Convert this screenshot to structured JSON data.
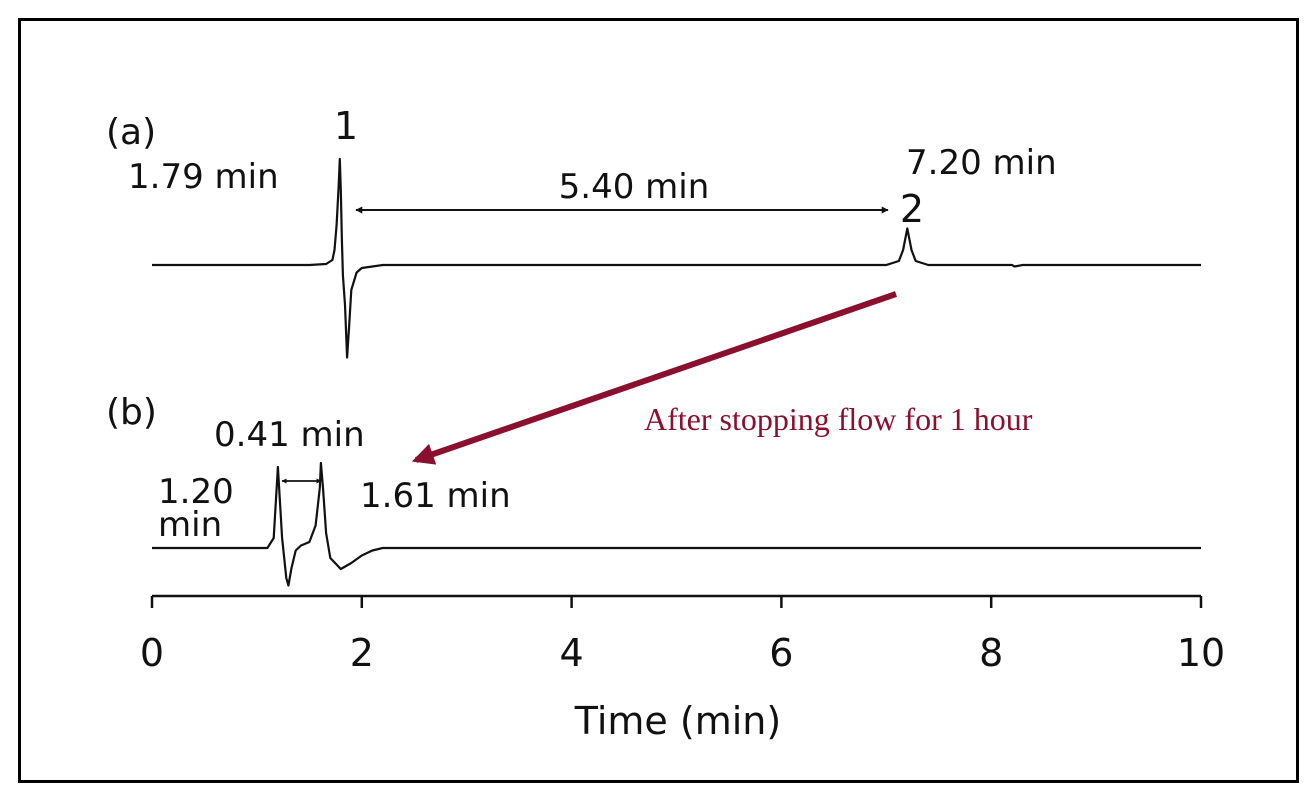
{
  "figure": {
    "panel_a_label": "(a)",
    "panel_b_label": "(b)",
    "peak1_number": "1",
    "peak2_number": "2",
    "peak1_time_label": "1.79 min",
    "peak2_time_label": "7.20 min",
    "spacing_a_label": "5.40 min",
    "b_peak1_time_label_line1": "1.20",
    "b_peak1_time_label_line2": "min",
    "b_spacing_label": "0.41 min",
    "b_peak2_time_label": "1.61 min",
    "annotation": "After stopping flow for 1 hour",
    "annotation_color": "#8b0f2e"
  },
  "chart_data": {
    "type": "line",
    "xlabel": "Time (min)",
    "ylabel": "",
    "xlim": [
      0,
      10
    ],
    "x_ticks": [
      0,
      2,
      4,
      6,
      8,
      10
    ],
    "x_tick_labels": [
      "0",
      "2",
      "4",
      "6",
      "8",
      "10"
    ],
    "grid": false,
    "series": [
      {
        "panel": "a",
        "x": [
          0,
          1.5,
          1.66,
          1.72,
          1.74,
          1.76,
          1.78,
          1.79,
          1.8,
          1.81,
          1.82,
          1.84,
          1.86,
          1.88,
          1.9,
          1.95,
          2.0,
          2.2,
          4.0,
          7.0,
          7.12,
          7.16,
          7.2,
          7.24,
          7.28,
          7.4,
          8.0,
          8.2,
          8.22,
          8.3,
          10.0
        ],
        "y": [
          0,
          0,
          0.02,
          0.1,
          0.3,
          0.8,
          1.6,
          2.12,
          1.5,
          0.5,
          -0.2,
          -0.8,
          -1.85,
          -1.2,
          -0.5,
          -0.15,
          -0.06,
          0,
          0,
          0,
          0.08,
          0.3,
          0.73,
          0.3,
          0.08,
          0,
          0,
          0,
          -0.03,
          0,
          0
        ]
      },
      {
        "panel": "b",
        "x": [
          0,
          1.1,
          1.16,
          1.2,
          1.24,
          1.28,
          1.3,
          1.33,
          1.37,
          1.42,
          1.5,
          1.56,
          1.6,
          1.61,
          1.63,
          1.66,
          1.7,
          1.8,
          1.9,
          2.0,
          2.1,
          2.2,
          2.4,
          4.0,
          10.0
        ],
        "y": [
          0,
          0,
          0.2,
          1.62,
          0.2,
          -0.6,
          -0.75,
          -0.4,
          -0.05,
          0.05,
          0.12,
          0.45,
          1.2,
          1.7,
          1.2,
          0.3,
          -0.2,
          -0.42,
          -0.3,
          -0.15,
          -0.05,
          0,
          0,
          0,
          0
        ]
      }
    ],
    "annotations": [
      {
        "panel": "a",
        "peak": "1",
        "retention_time": 1.79
      },
      {
        "panel": "a",
        "peak": "2",
        "retention_time": 7.2
      },
      {
        "panel": "a",
        "from": 1.79,
        "to": 7.2,
        "difference": 5.4
      },
      {
        "panel": "b",
        "retention_time": 1.2
      },
      {
        "panel": "b",
        "retention_time": 1.61
      },
      {
        "panel": "b",
        "from": 1.2,
        "to": 1.61,
        "difference": 0.41
      }
    ]
  }
}
